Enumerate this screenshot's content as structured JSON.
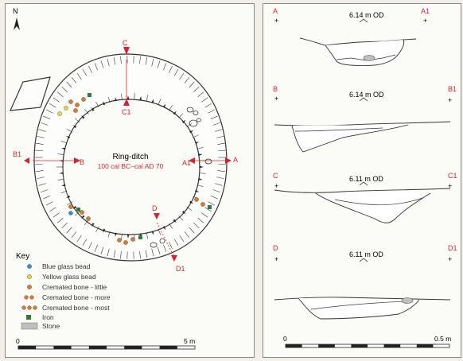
{
  "plan": {
    "north": "N",
    "title": "Ring-ditch",
    "date": "100 cal BC–cal AD 70",
    "section_labels": [
      "A",
      "A1",
      "B",
      "B1",
      "C",
      "C1",
      "D",
      "D1"
    ],
    "scale": {
      "start": "0",
      "end": "5 m"
    }
  },
  "key": {
    "title": "Key",
    "items": [
      {
        "label": "Blue glass bead",
        "symbol": "blue-dot",
        "color": "#2f8fd8"
      },
      {
        "label": "Yellow glass bead",
        "symbol": "yellow-dot",
        "color": "#f0d23a"
      },
      {
        "label": "Cremated bone - little",
        "symbol": "orange-dot-1",
        "color": "#e07b2e"
      },
      {
        "label": "Cremated bone - more",
        "symbol": "orange-dot-2",
        "color": "#e07b2e"
      },
      {
        "label": "Cremated bone - most",
        "symbol": "orange-dot-3",
        "color": "#e07b2e"
      },
      {
        "label": "Iron",
        "symbol": "green-square",
        "color": "#2f7d3b"
      },
      {
        "label": "Stone",
        "symbol": "grey-rect",
        "color": "#bfbfbf"
      }
    ]
  },
  "sections": [
    {
      "left": "A",
      "right": "A1",
      "od": "6.14 m OD"
    },
    {
      "left": "B",
      "right": "B1",
      "od": "6.14 m OD"
    },
    {
      "left": "C",
      "right": "C1",
      "od": "6.11 m OD"
    },
    {
      "left": "D",
      "right": "D1",
      "od": "6.11 m OD"
    }
  ],
  "section_scale": {
    "start": "0",
    "end": "0.5 m"
  },
  "colors": {
    "label_red": "#d8232a",
    "line": "#333333"
  }
}
